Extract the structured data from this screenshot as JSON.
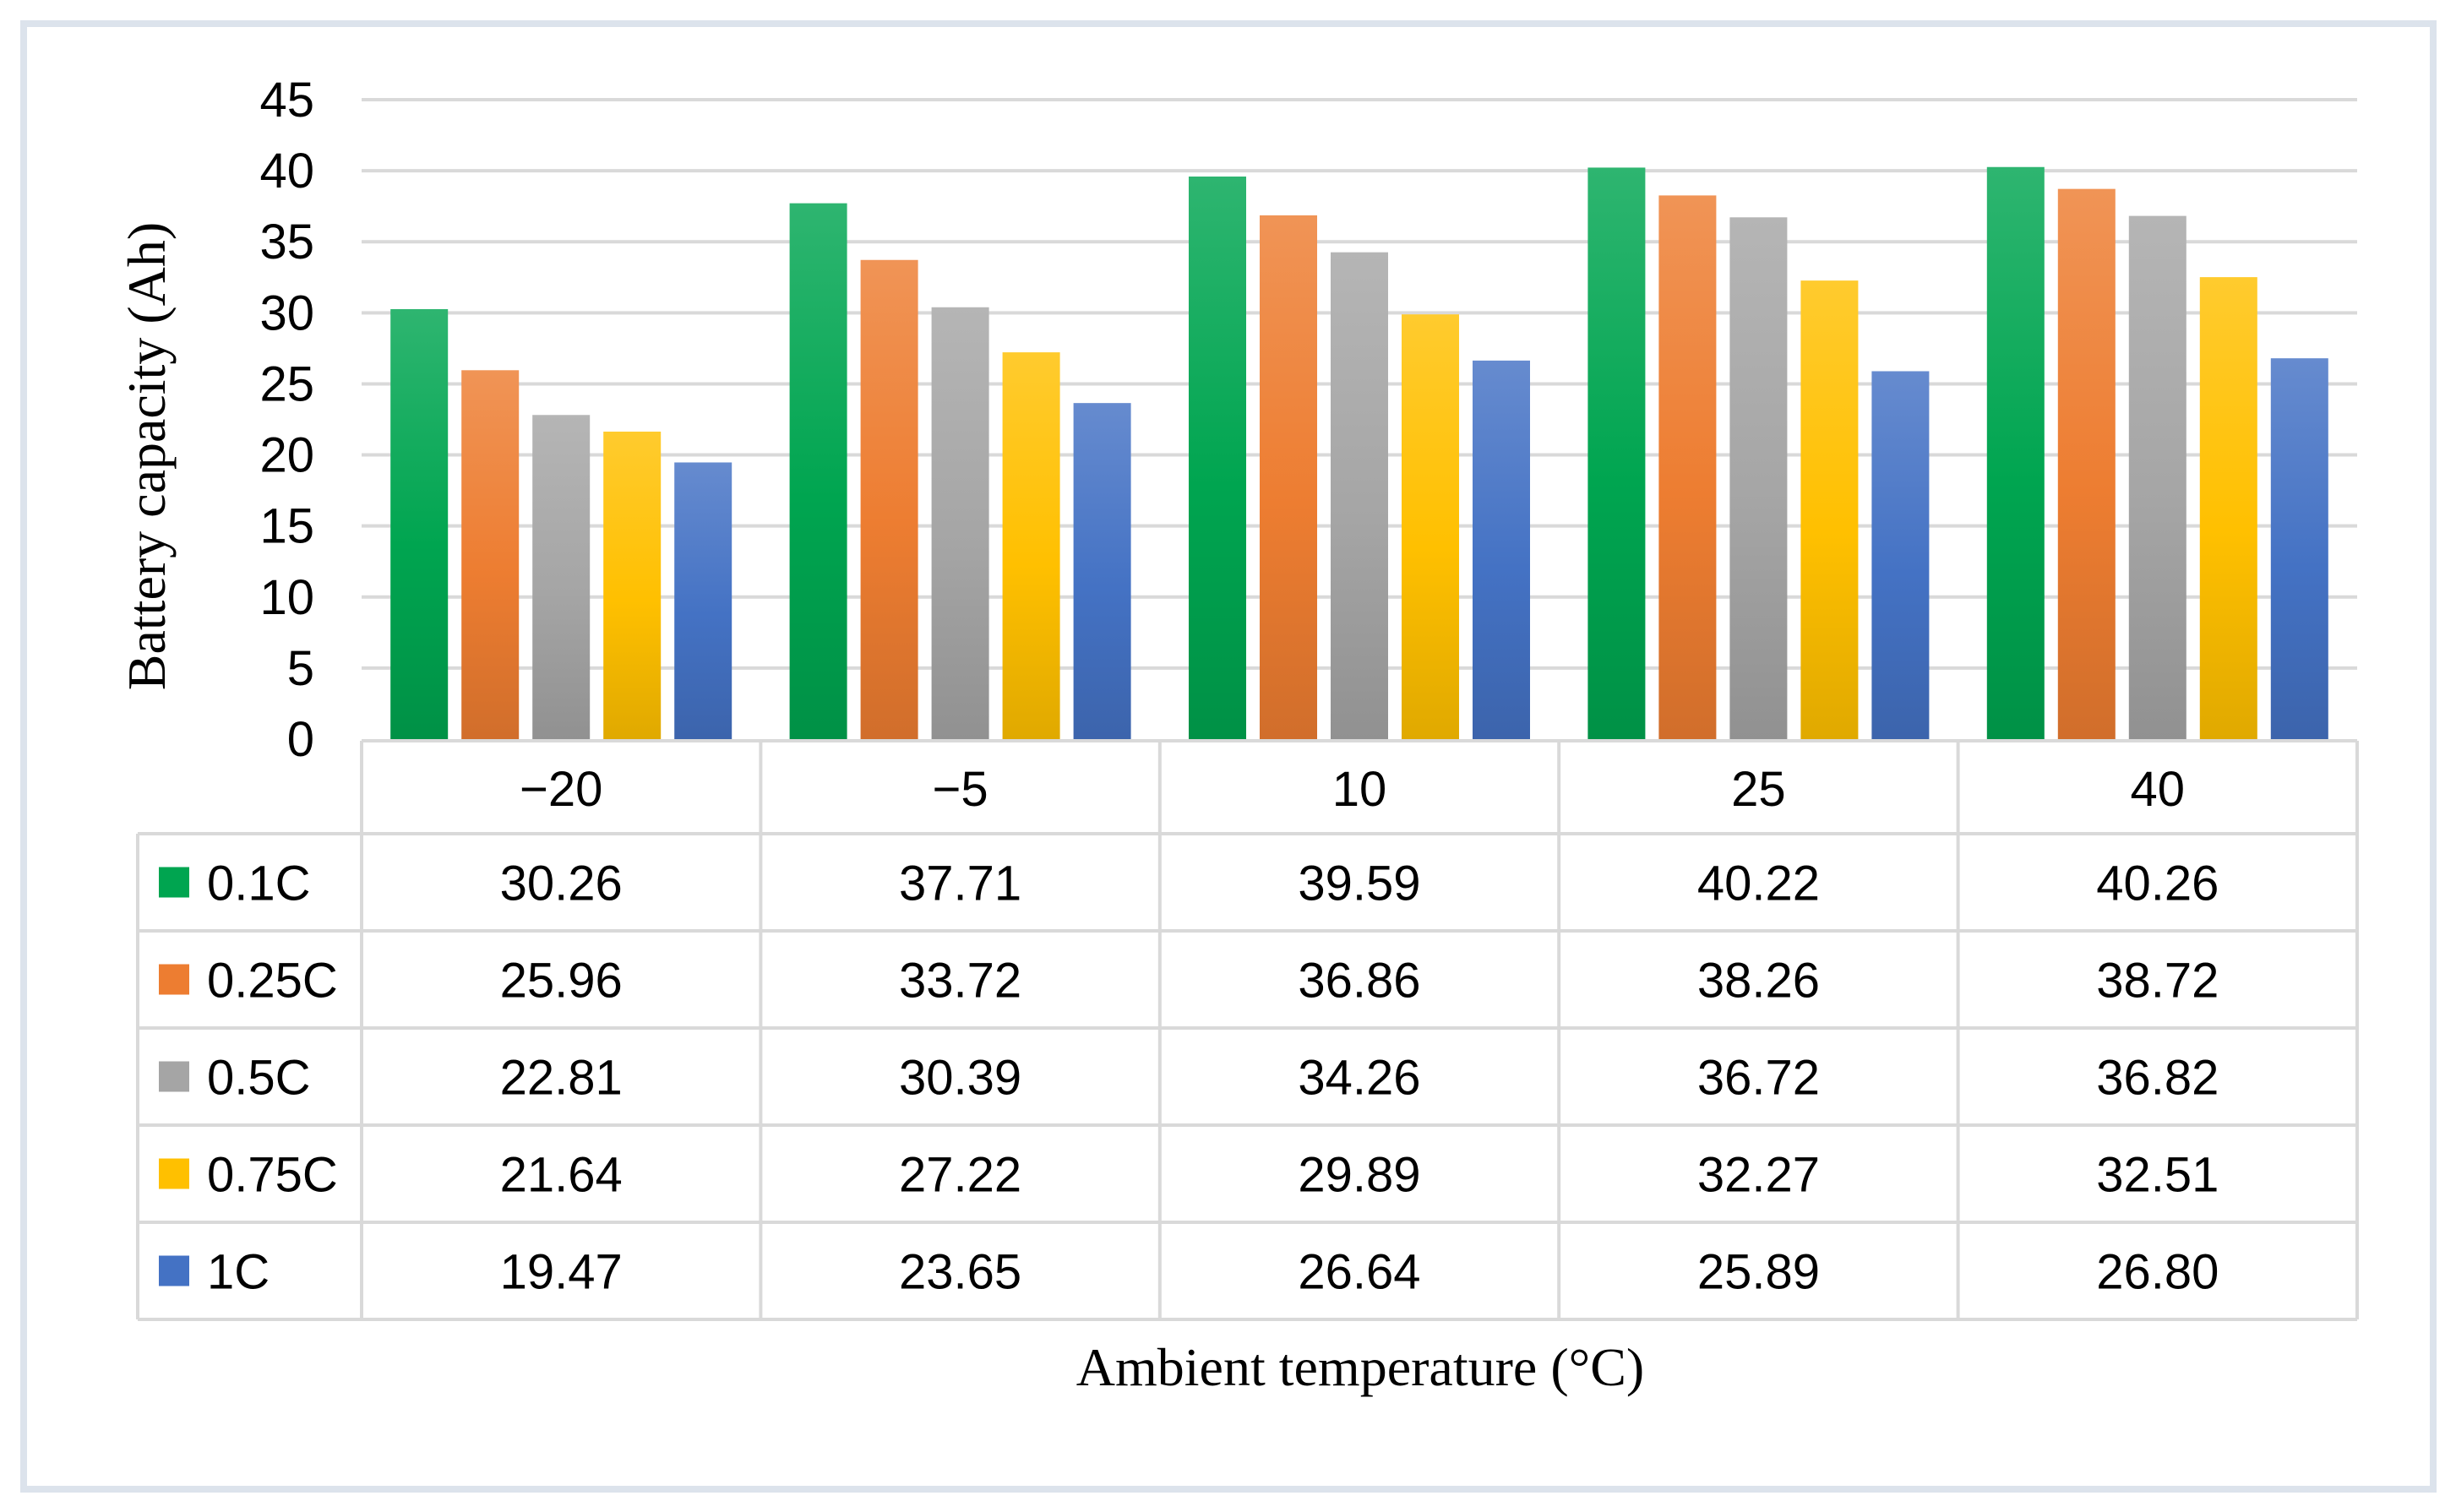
{
  "chart_data": {
    "type": "bar",
    "title": "",
    "xlabel": "Ambient temperature (°C)",
    "ylabel": "Battery capacity (Ah)",
    "ylim": [
      0,
      45
    ],
    "yticks": [
      "0",
      "5",
      "10",
      "15",
      "20",
      "25",
      "30",
      "35",
      "40",
      "45"
    ],
    "grid": true,
    "categories": [
      "−20",
      "−5",
      "10",
      "25",
      "40"
    ],
    "series": [
      {
        "name": "0.1C",
        "color": "#00A550",
        "values": [
          30.26,
          37.71,
          39.59,
          40.22,
          40.26
        ],
        "labels": [
          "30.26",
          "37.71",
          "39.59",
          "40.22",
          "40.26"
        ]
      },
      {
        "name": "0.25C",
        "color": "#ED7D31",
        "values": [
          25.96,
          33.72,
          36.86,
          38.26,
          38.72
        ],
        "labels": [
          "25.96",
          "33.72",
          "36.86",
          "38.26",
          "38.72"
        ]
      },
      {
        "name": "0.5C",
        "color": "#A5A5A5",
        "values": [
          22.81,
          30.39,
          34.26,
          36.72,
          36.82
        ],
        "labels": [
          "22.81",
          "30.39",
          "34.26",
          "36.72",
          "36.82"
        ]
      },
      {
        "name": "0.75C",
        "color": "#FFC000",
        "values": [
          21.64,
          27.22,
          29.89,
          32.27,
          32.51
        ],
        "labels": [
          "21.64",
          "27.22",
          "29.89",
          "32.27",
          "32.51"
        ]
      },
      {
        "name": "1C",
        "color": "#4472C4",
        "values": [
          19.47,
          23.65,
          26.64,
          25.89,
          26.8
        ],
        "labels": [
          "19.47",
          "23.65",
          "26.64",
          "25.89",
          "26.80"
        ]
      }
    ]
  }
}
